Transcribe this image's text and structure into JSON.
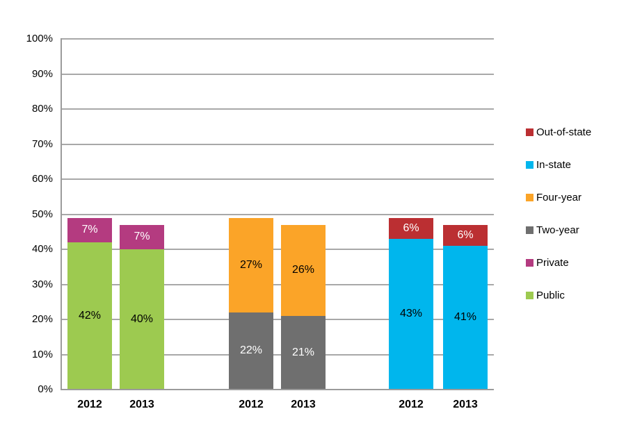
{
  "chart_data": {
    "type": "bar",
    "stacked": true,
    "title": "",
    "xlabel": "",
    "ylabel": "",
    "ylim": [
      0,
      100
    ],
    "ytick_step": 10,
    "ytick_labels": [
      "0%",
      "10%",
      "20%",
      "30%",
      "40%",
      "50%",
      "60%",
      "70%",
      "80%",
      "90%",
      "100%"
    ],
    "grid": true,
    "legend_position": "right",
    "legend": [
      {
        "label": "Out-of-state",
        "color": "#bb2f32"
      },
      {
        "label": "In-state",
        "color": "#00b6ed"
      },
      {
        "label": "Four-year",
        "color": "#fba428"
      },
      {
        "label": "Two-year",
        "color": "#6f6f6f"
      },
      {
        "label": "Private",
        "color": "#b43b80"
      },
      {
        "label": "Public",
        "color": "#9dca50"
      }
    ],
    "groups": [
      {
        "name": "public-private",
        "bars": [
          {
            "category": "2012",
            "segments": [
              {
                "series": "Public",
                "value": 42,
                "label": "42%",
                "color": "#9dca50",
                "label_color": "#000000"
              },
              {
                "series": "Private",
                "value": 7,
                "label": "7%",
                "color": "#b43b80",
                "label_color": "#ffffff"
              }
            ]
          },
          {
            "category": "2013",
            "segments": [
              {
                "series": "Public",
                "value": 40,
                "label": "40%",
                "color": "#9dca50",
                "label_color": "#000000"
              },
              {
                "series": "Private",
                "value": 7,
                "label": "7%",
                "color": "#b43b80",
                "label_color": "#ffffff"
              }
            ]
          }
        ]
      },
      {
        "name": "two-year-four-year",
        "bars": [
          {
            "category": "2012",
            "segments": [
              {
                "series": "Two-year",
                "value": 22,
                "label": "22%",
                "color": "#6f6f6f",
                "label_color": "#ffffff"
              },
              {
                "series": "Four-year",
                "value": 27,
                "label": "27%",
                "color": "#fba428",
                "label_color": "#000000"
              }
            ]
          },
          {
            "category": "2013",
            "segments": [
              {
                "series": "Two-year",
                "value": 21,
                "label": "21%",
                "color": "#6f6f6f",
                "label_color": "#ffffff"
              },
              {
                "series": "Four-year",
                "value": 26,
                "label": "26%",
                "color": "#fba428",
                "label_color": "#000000"
              }
            ]
          }
        ]
      },
      {
        "name": "in-state-out-of-state",
        "bars": [
          {
            "category": "2012",
            "segments": [
              {
                "series": "In-state",
                "value": 43,
                "label": "43%",
                "color": "#00b6ed",
                "label_color": "#000000"
              },
              {
                "series": "Out-of-state",
                "value": 6,
                "label": "6%",
                "color": "#bb2f32",
                "label_color": "#ffffff"
              }
            ]
          },
          {
            "category": "2013",
            "segments": [
              {
                "series": "In-state",
                "value": 41,
                "label": "41%",
                "color": "#00b6ed",
                "label_color": "#000000"
              },
              {
                "series": "Out-of-state",
                "value": 6,
                "label": "6%",
                "color": "#bb2f32",
                "label_color": "#ffffff"
              }
            ]
          }
        ]
      }
    ],
    "style_colors": {
      "gridline": "#a8a8a8",
      "axis": "#9b9b9b",
      "background": "#ffffff"
    }
  }
}
